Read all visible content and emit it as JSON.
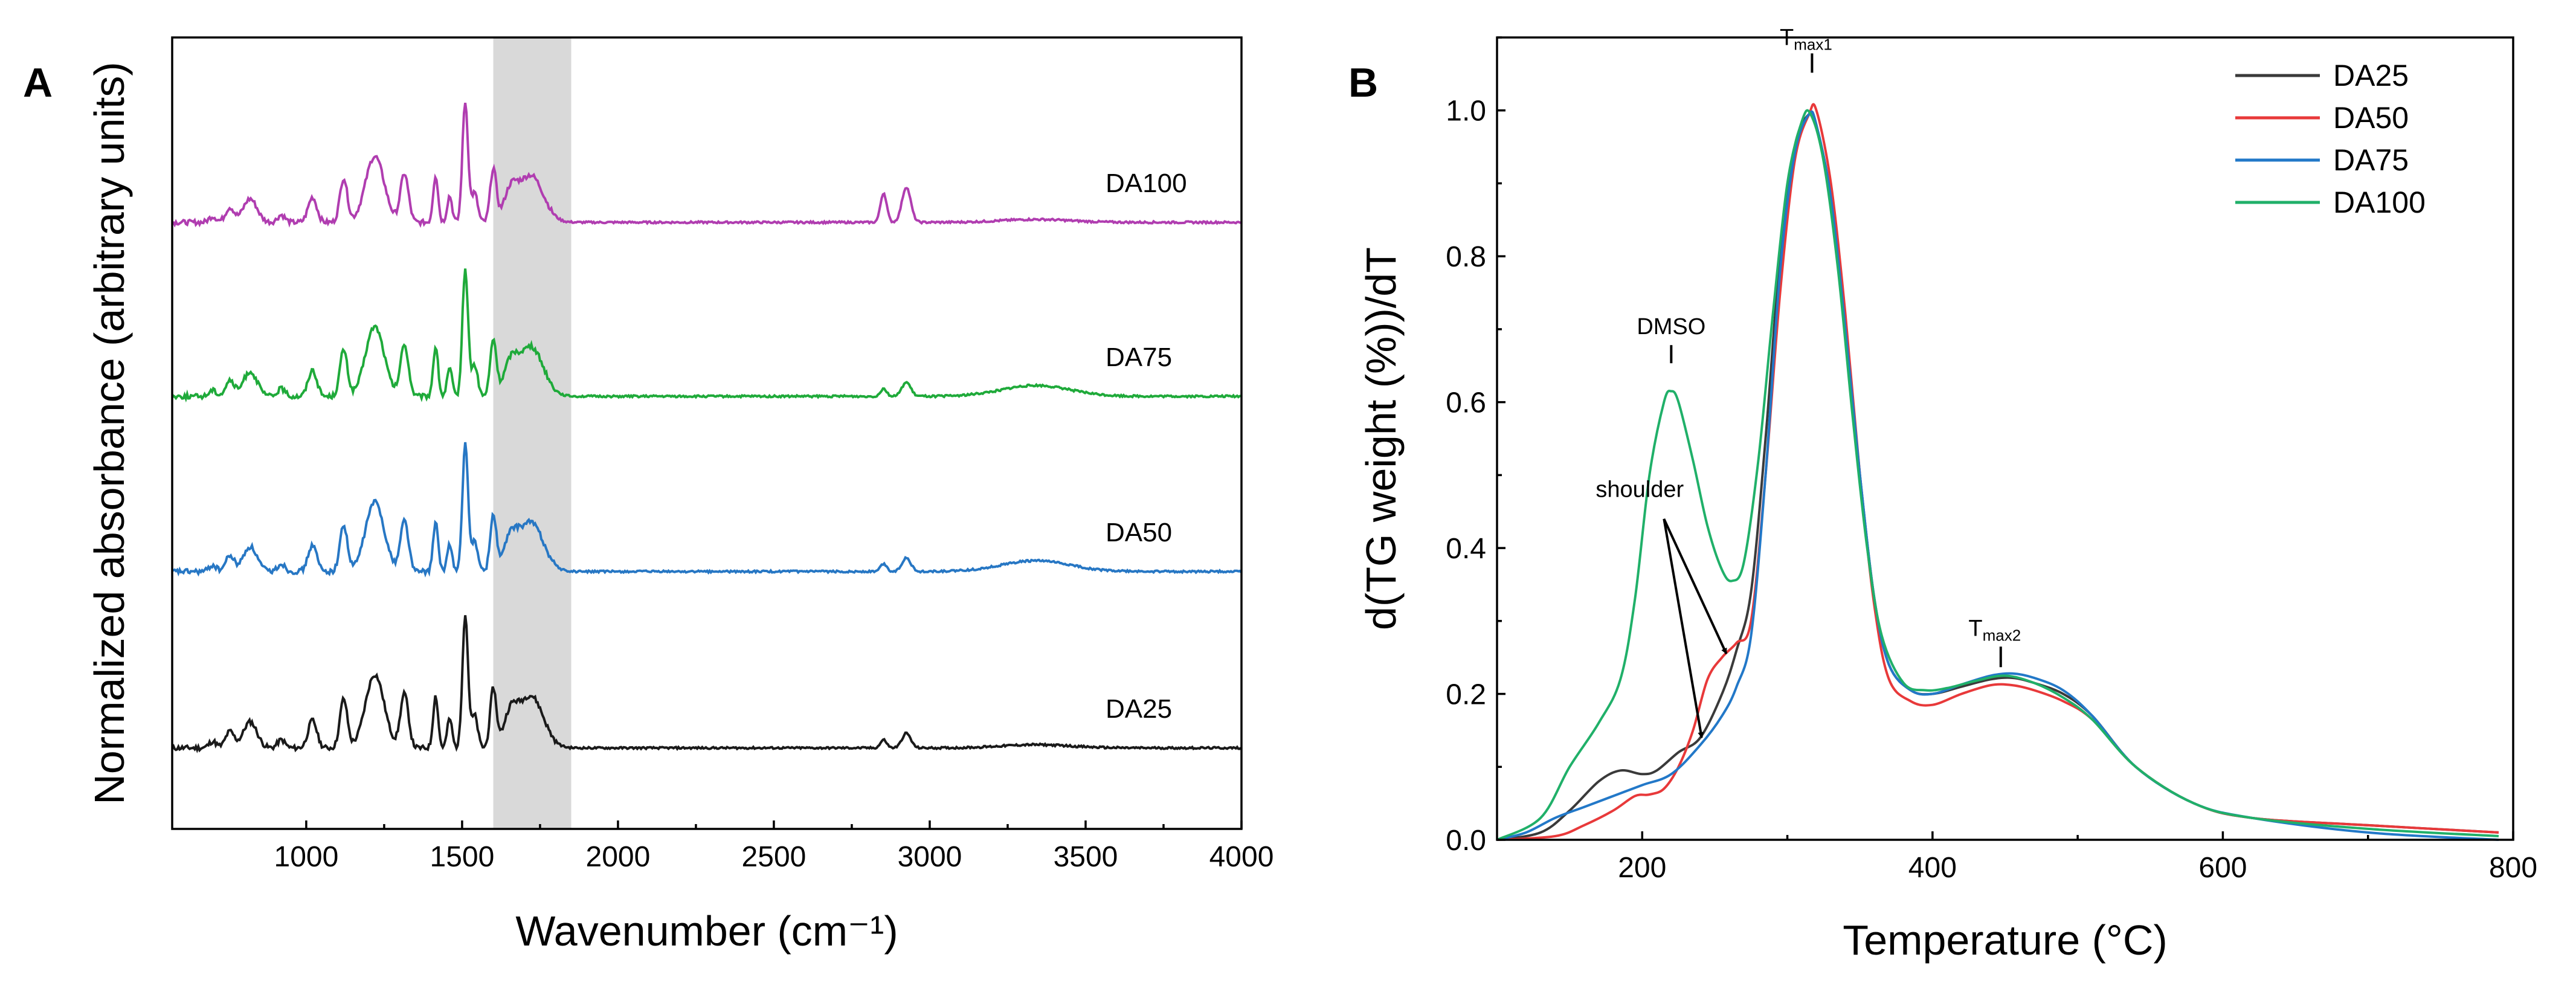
{
  "chart_data": [
    {
      "panel": "A",
      "type": "line",
      "xlabel": "Wavenumber (cm⁻¹)",
      "ylabel": "Normalized absorbance (arbitrary units)",
      "xlim": [
        570,
        4000
      ],
      "xticks": [
        1000,
        1500,
        2000,
        2500,
        3000,
        3500,
        4000
      ],
      "xtick_labels": [
        "1000",
        "1500",
        "2000",
        "2500",
        "3000",
        "3500",
        "4000"
      ],
      "yticks": false,
      "shaded_region": [
        1600,
        1850
      ],
      "stack_offset": 1.0,
      "peaks_common": [
        [
          700,
          0.04,
          12
        ],
        [
          755,
          0.1,
          14
        ],
        [
          820,
          0.16,
          22
        ],
        [
          920,
          0.05,
          12
        ],
        [
          1020,
          0.17,
          14
        ],
        [
          1120,
          0.3,
          12
        ],
        [
          1220,
          0.45,
          30
        ],
        [
          1315,
          0.33,
          13
        ],
        [
          1415,
          0.32,
          8
        ],
        [
          1460,
          0.18,
          8
        ],
        [
          1510,
          0.82,
          9
        ],
        [
          1540,
          0.2,
          10
        ],
        [
          1600,
          0.36,
          10
        ],
        [
          1720,
          0.32,
          40
        ],
        [
          1655,
          0.18,
          22
        ],
        [
          2852,
          0.05,
          10
        ],
        [
          2925,
          0.09,
          14
        ],
        [
          3340,
          0.03,
          110
        ]
      ],
      "series": [
        {
          "name": "DA25",
          "color": "#1a1a1a",
          "offset": 0,
          "scale": 1.0,
          "oh_band": 0.02
        },
        {
          "name": "DA50",
          "color": "#2777c4",
          "offset": 1,
          "scale": 0.95,
          "oh_band": 0.07
        },
        {
          "name": "DA75",
          "color": "#1faa3a",
          "offset": 2,
          "scale": 0.95,
          "oh_band": 0.07
        },
        {
          "name": "DA100",
          "color": "#b03db0",
          "offset": 3,
          "scale": 0.9,
          "oh_band": 0.02,
          "ch_boost": 0.15
        }
      ]
    },
    {
      "panel": "B",
      "type": "line",
      "xlabel": "Temperature (°C)",
      "ylabel": "d(TG weight (%))/dT",
      "xlim": [
        100,
        800
      ],
      "ylim": [
        0,
        1.1
      ],
      "xticks": [
        200,
        400,
        600,
        800
      ],
      "xtick_labels": [
        "200",
        "400",
        "600",
        "800"
      ],
      "yticks": [
        0.0,
        0.2,
        0.4,
        0.6,
        0.8,
        1.0
      ],
      "ytick_labels": [
        "0.0",
        "0.2",
        "0.4",
        "0.6",
        "0.8",
        "1.0"
      ],
      "legend_position": "top-right",
      "series": [
        {
          "name": "DA25",
          "color": "#3a3a3a",
          "x": [
            100,
            130,
            150,
            170,
            185,
            200,
            210,
            225,
            240,
            255,
            265,
            275,
            285,
            295,
            305,
            315,
            320,
            330,
            340,
            350,
            360,
            370,
            385,
            400,
            420,
            440,
            455,
            470,
            490,
            510,
            540,
            580,
            620,
            700,
            790
          ],
          "y": [
            0.0,
            0.01,
            0.04,
            0.08,
            0.095,
            0.09,
            0.095,
            0.12,
            0.14,
            0.2,
            0.26,
            0.34,
            0.55,
            0.8,
            0.95,
            0.995,
            0.98,
            0.88,
            0.7,
            0.5,
            0.33,
            0.24,
            0.205,
            0.2,
            0.21,
            0.22,
            0.222,
            0.215,
            0.2,
            0.17,
            0.1,
            0.05,
            0.03,
            0.02,
            0.01
          ]
        },
        {
          "name": "DA50",
          "color": "#e8393a",
          "x": [
            100,
            140,
            160,
            180,
            195,
            205,
            215,
            225,
            235,
            245,
            255,
            265,
            275,
            285,
            295,
            305,
            315,
            320,
            330,
            340,
            350,
            360,
            370,
            385,
            400,
            420,
            440,
            455,
            470,
            490,
            510,
            540,
            580,
            620,
            700,
            790
          ],
          "y": [
            0.0,
            0.005,
            0.02,
            0.04,
            0.06,
            0.062,
            0.07,
            0.1,
            0.15,
            0.22,
            0.25,
            0.27,
            0.3,
            0.5,
            0.75,
            0.93,
            0.995,
            1.0,
            0.9,
            0.72,
            0.5,
            0.32,
            0.22,
            0.19,
            0.185,
            0.2,
            0.212,
            0.212,
            0.205,
            0.19,
            0.165,
            0.1,
            0.05,
            0.03,
            0.02,
            0.01
          ]
        },
        {
          "name": "DA75",
          "color": "#2278c8",
          "x": [
            100,
            120,
            140,
            160,
            180,
            200,
            220,
            240,
            255,
            265,
            275,
            285,
            295,
            305,
            315,
            320,
            330,
            340,
            350,
            360,
            370,
            385,
            400,
            420,
            440,
            455,
            470,
            490,
            510,
            540,
            580,
            620,
            700,
            790
          ],
          "y": [
            0.0,
            0.01,
            0.03,
            0.045,
            0.06,
            0.075,
            0.09,
            0.13,
            0.17,
            0.21,
            0.28,
            0.5,
            0.78,
            0.94,
            0.995,
            0.98,
            0.88,
            0.7,
            0.5,
            0.33,
            0.24,
            0.205,
            0.2,
            0.213,
            0.225,
            0.228,
            0.222,
            0.205,
            0.17,
            0.1,
            0.05,
            0.03,
            0.01,
            0.0
          ]
        },
        {
          "name": "DA100",
          "color": "#20b069",
          "x": [
            100,
            130,
            150,
            170,
            185,
            195,
            205,
            215,
            220,
            225,
            235,
            245,
            255,
            262,
            270,
            280,
            290,
            300,
            310,
            316,
            325,
            335,
            345,
            355,
            365,
            380,
            395,
            410,
            430,
            450,
            470,
            490,
            510,
            540,
            580,
            620,
            700,
            790
          ],
          "y": [
            0.0,
            0.03,
            0.1,
            0.16,
            0.22,
            0.33,
            0.5,
            0.6,
            0.615,
            0.6,
            0.52,
            0.43,
            0.37,
            0.355,
            0.38,
            0.52,
            0.72,
            0.9,
            0.985,
            0.995,
            0.93,
            0.78,
            0.58,
            0.4,
            0.28,
            0.215,
            0.205,
            0.208,
            0.218,
            0.225,
            0.215,
            0.195,
            0.165,
            0.1,
            0.05,
            0.03,
            0.015,
            0.005
          ]
        }
      ],
      "annotations": {
        "dmso": "DMSO",
        "tmax1_main": "T",
        "tmax1_sub": "max1",
        "tmax2_main": "T",
        "tmax2_sub": "max2",
        "shoulder": "shoulder"
      }
    }
  ],
  "panel_labels": {
    "a": "A",
    "b": "B"
  }
}
